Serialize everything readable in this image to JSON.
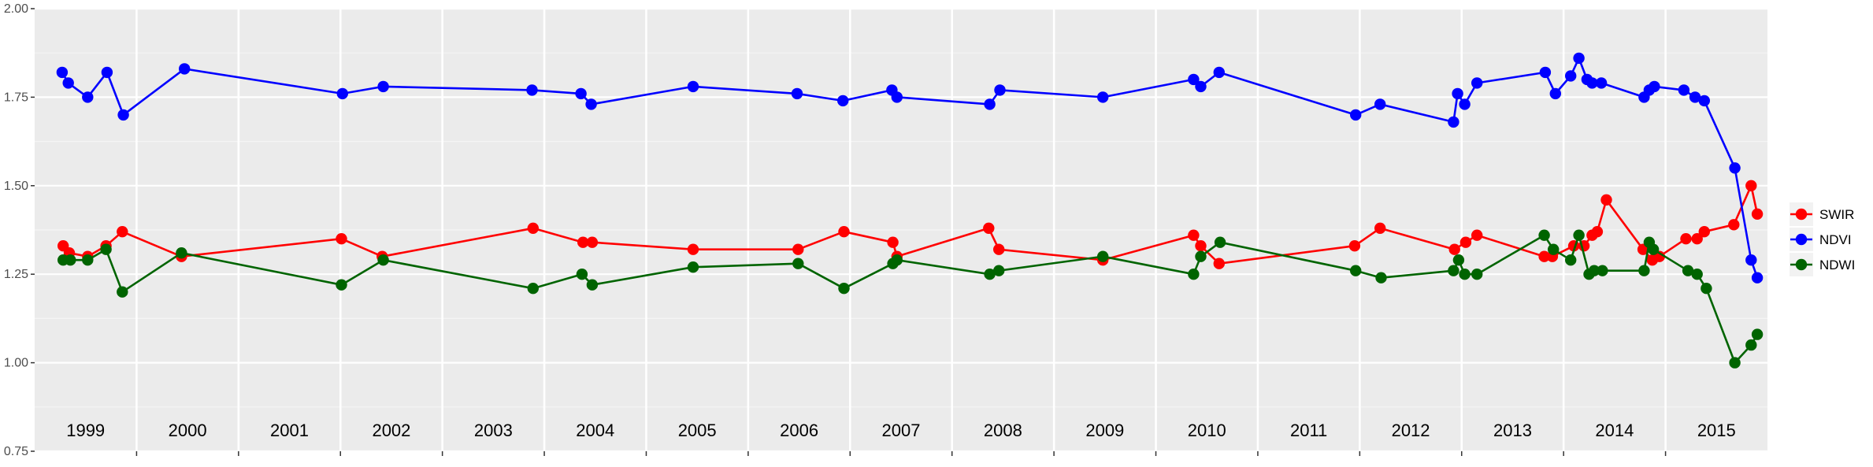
{
  "chart_data": {
    "type": "line",
    "title": "",
    "xlabel": "",
    "ylabel": "",
    "ylim": [
      0.75,
      2.0
    ],
    "y_ticks": [
      "0.75",
      "1.00",
      "1.25",
      "1.50",
      "1.75",
      "2.00"
    ],
    "x_year_labels": [
      "1999",
      "2000",
      "2001",
      "2002",
      "2003",
      "2004",
      "2005",
      "2006",
      "2007",
      "2008",
      "2009",
      "2010",
      "2011",
      "2012",
      "2013",
      "2014",
      "2015"
    ],
    "x_range": [
      1999.0,
      2016.0
    ],
    "grid": true,
    "legend_position": "right",
    "series": [
      {
        "name": "SWIR",
        "color": "#ff0000",
        "points": [
          [
            1999.28,
            1.33
          ],
          [
            1999.34,
            1.31
          ],
          [
            1999.52,
            1.3
          ],
          [
            1999.7,
            1.33
          ],
          [
            1999.86,
            1.37
          ],
          [
            2000.44,
            1.3
          ],
          [
            2002.01,
            1.35
          ],
          [
            2002.41,
            1.3
          ],
          [
            2003.89,
            1.38
          ],
          [
            2004.38,
            1.34
          ],
          [
            2004.47,
            1.34
          ],
          [
            2005.46,
            1.32
          ],
          [
            2006.49,
            1.32
          ],
          [
            2006.94,
            1.37
          ],
          [
            2007.42,
            1.34
          ],
          [
            2007.46,
            1.3
          ],
          [
            2008.36,
            1.38
          ],
          [
            2008.46,
            1.32
          ],
          [
            2009.48,
            1.29
          ],
          [
            2010.37,
            1.36
          ],
          [
            2010.44,
            1.33
          ],
          [
            2010.62,
            1.28
          ],
          [
            2011.95,
            1.33
          ],
          [
            2012.2,
            1.38
          ],
          [
            2012.93,
            1.32
          ],
          [
            2013.04,
            1.34
          ],
          [
            2013.15,
            1.36
          ],
          [
            2013.81,
            1.3
          ],
          [
            2013.89,
            1.3
          ],
          [
            2014.1,
            1.33
          ],
          [
            2014.2,
            1.33
          ],
          [
            2014.28,
            1.36
          ],
          [
            2014.33,
            1.37
          ],
          [
            2014.42,
            1.46
          ],
          [
            2014.78,
            1.32
          ],
          [
            2014.87,
            1.29
          ],
          [
            2014.94,
            1.3
          ],
          [
            2015.2,
            1.35
          ],
          [
            2015.31,
            1.35
          ],
          [
            2015.38,
            1.37
          ],
          [
            2015.67,
            1.39
          ],
          [
            2015.84,
            1.5
          ],
          [
            2015.9,
            1.42
          ]
        ]
      },
      {
        "name": "NDVI",
        "color": "#0000ff",
        "points": [
          [
            1999.27,
            1.82
          ],
          [
            1999.33,
            1.79
          ],
          [
            1999.52,
            1.75
          ],
          [
            1999.71,
            1.82
          ],
          [
            1999.87,
            1.7
          ],
          [
            2000.47,
            1.83
          ],
          [
            2002.02,
            1.76
          ],
          [
            2002.42,
            1.78
          ],
          [
            2003.88,
            1.77
          ],
          [
            2004.36,
            1.76
          ],
          [
            2004.46,
            1.73
          ],
          [
            2005.46,
            1.78
          ],
          [
            2006.48,
            1.76
          ],
          [
            2006.93,
            1.74
          ],
          [
            2007.41,
            1.77
          ],
          [
            2007.46,
            1.75
          ],
          [
            2008.37,
            1.73
          ],
          [
            2008.47,
            1.77
          ],
          [
            2009.48,
            1.75
          ],
          [
            2010.37,
            1.8
          ],
          [
            2010.44,
            1.78
          ],
          [
            2010.62,
            1.82
          ],
          [
            2011.96,
            1.7
          ],
          [
            2012.2,
            1.73
          ],
          [
            2012.92,
            1.68
          ],
          [
            2012.96,
            1.76
          ],
          [
            2013.03,
            1.73
          ],
          [
            2013.15,
            1.79
          ],
          [
            2013.82,
            1.82
          ],
          [
            2013.92,
            1.76
          ],
          [
            2014.07,
            1.81
          ],
          [
            2014.15,
            1.86
          ],
          [
            2014.23,
            1.8
          ],
          [
            2014.28,
            1.79
          ],
          [
            2014.37,
            1.79
          ],
          [
            2014.79,
            1.75
          ],
          [
            2014.84,
            1.77
          ],
          [
            2014.89,
            1.78
          ],
          [
            2015.18,
            1.77
          ],
          [
            2015.29,
            1.75
          ],
          [
            2015.38,
            1.74
          ],
          [
            2015.68,
            1.55
          ],
          [
            2015.84,
            1.29
          ],
          [
            2015.9,
            1.24
          ]
        ]
      },
      {
        "name": "NDWI",
        "color": "#006400",
        "points": [
          [
            1999.28,
            1.29
          ],
          [
            1999.35,
            1.29
          ],
          [
            1999.52,
            1.29
          ],
          [
            1999.7,
            1.32
          ],
          [
            1999.86,
            1.2
          ],
          [
            2000.44,
            1.31
          ],
          [
            2002.01,
            1.22
          ],
          [
            2002.42,
            1.29
          ],
          [
            2003.89,
            1.21
          ],
          [
            2004.37,
            1.25
          ],
          [
            2004.47,
            1.22
          ],
          [
            2005.46,
            1.27
          ],
          [
            2006.49,
            1.28
          ],
          [
            2006.94,
            1.21
          ],
          [
            2007.42,
            1.28
          ],
          [
            2007.46,
            1.29
          ],
          [
            2008.37,
            1.25
          ],
          [
            2008.46,
            1.26
          ],
          [
            2009.48,
            1.3
          ],
          [
            2010.37,
            1.25
          ],
          [
            2010.44,
            1.3
          ],
          [
            2010.63,
            1.34
          ],
          [
            2011.96,
            1.26
          ],
          [
            2012.21,
            1.24
          ],
          [
            2012.92,
            1.26
          ],
          [
            2012.97,
            1.29
          ],
          [
            2013.03,
            1.25
          ],
          [
            2013.15,
            1.25
          ],
          [
            2013.81,
            1.36
          ],
          [
            2013.9,
            1.32
          ],
          [
            2014.07,
            1.29
          ],
          [
            2014.15,
            1.36
          ],
          [
            2014.25,
            1.25
          ],
          [
            2014.3,
            1.26
          ],
          [
            2014.38,
            1.26
          ],
          [
            2014.79,
            1.26
          ],
          [
            2014.84,
            1.34
          ],
          [
            2014.88,
            1.32
          ],
          [
            2015.22,
            1.26
          ],
          [
            2015.31,
            1.25
          ],
          [
            2015.4,
            1.21
          ],
          [
            2015.68,
            1.0
          ],
          [
            2015.84,
            1.05
          ],
          [
            2015.9,
            1.08
          ]
        ]
      }
    ]
  }
}
